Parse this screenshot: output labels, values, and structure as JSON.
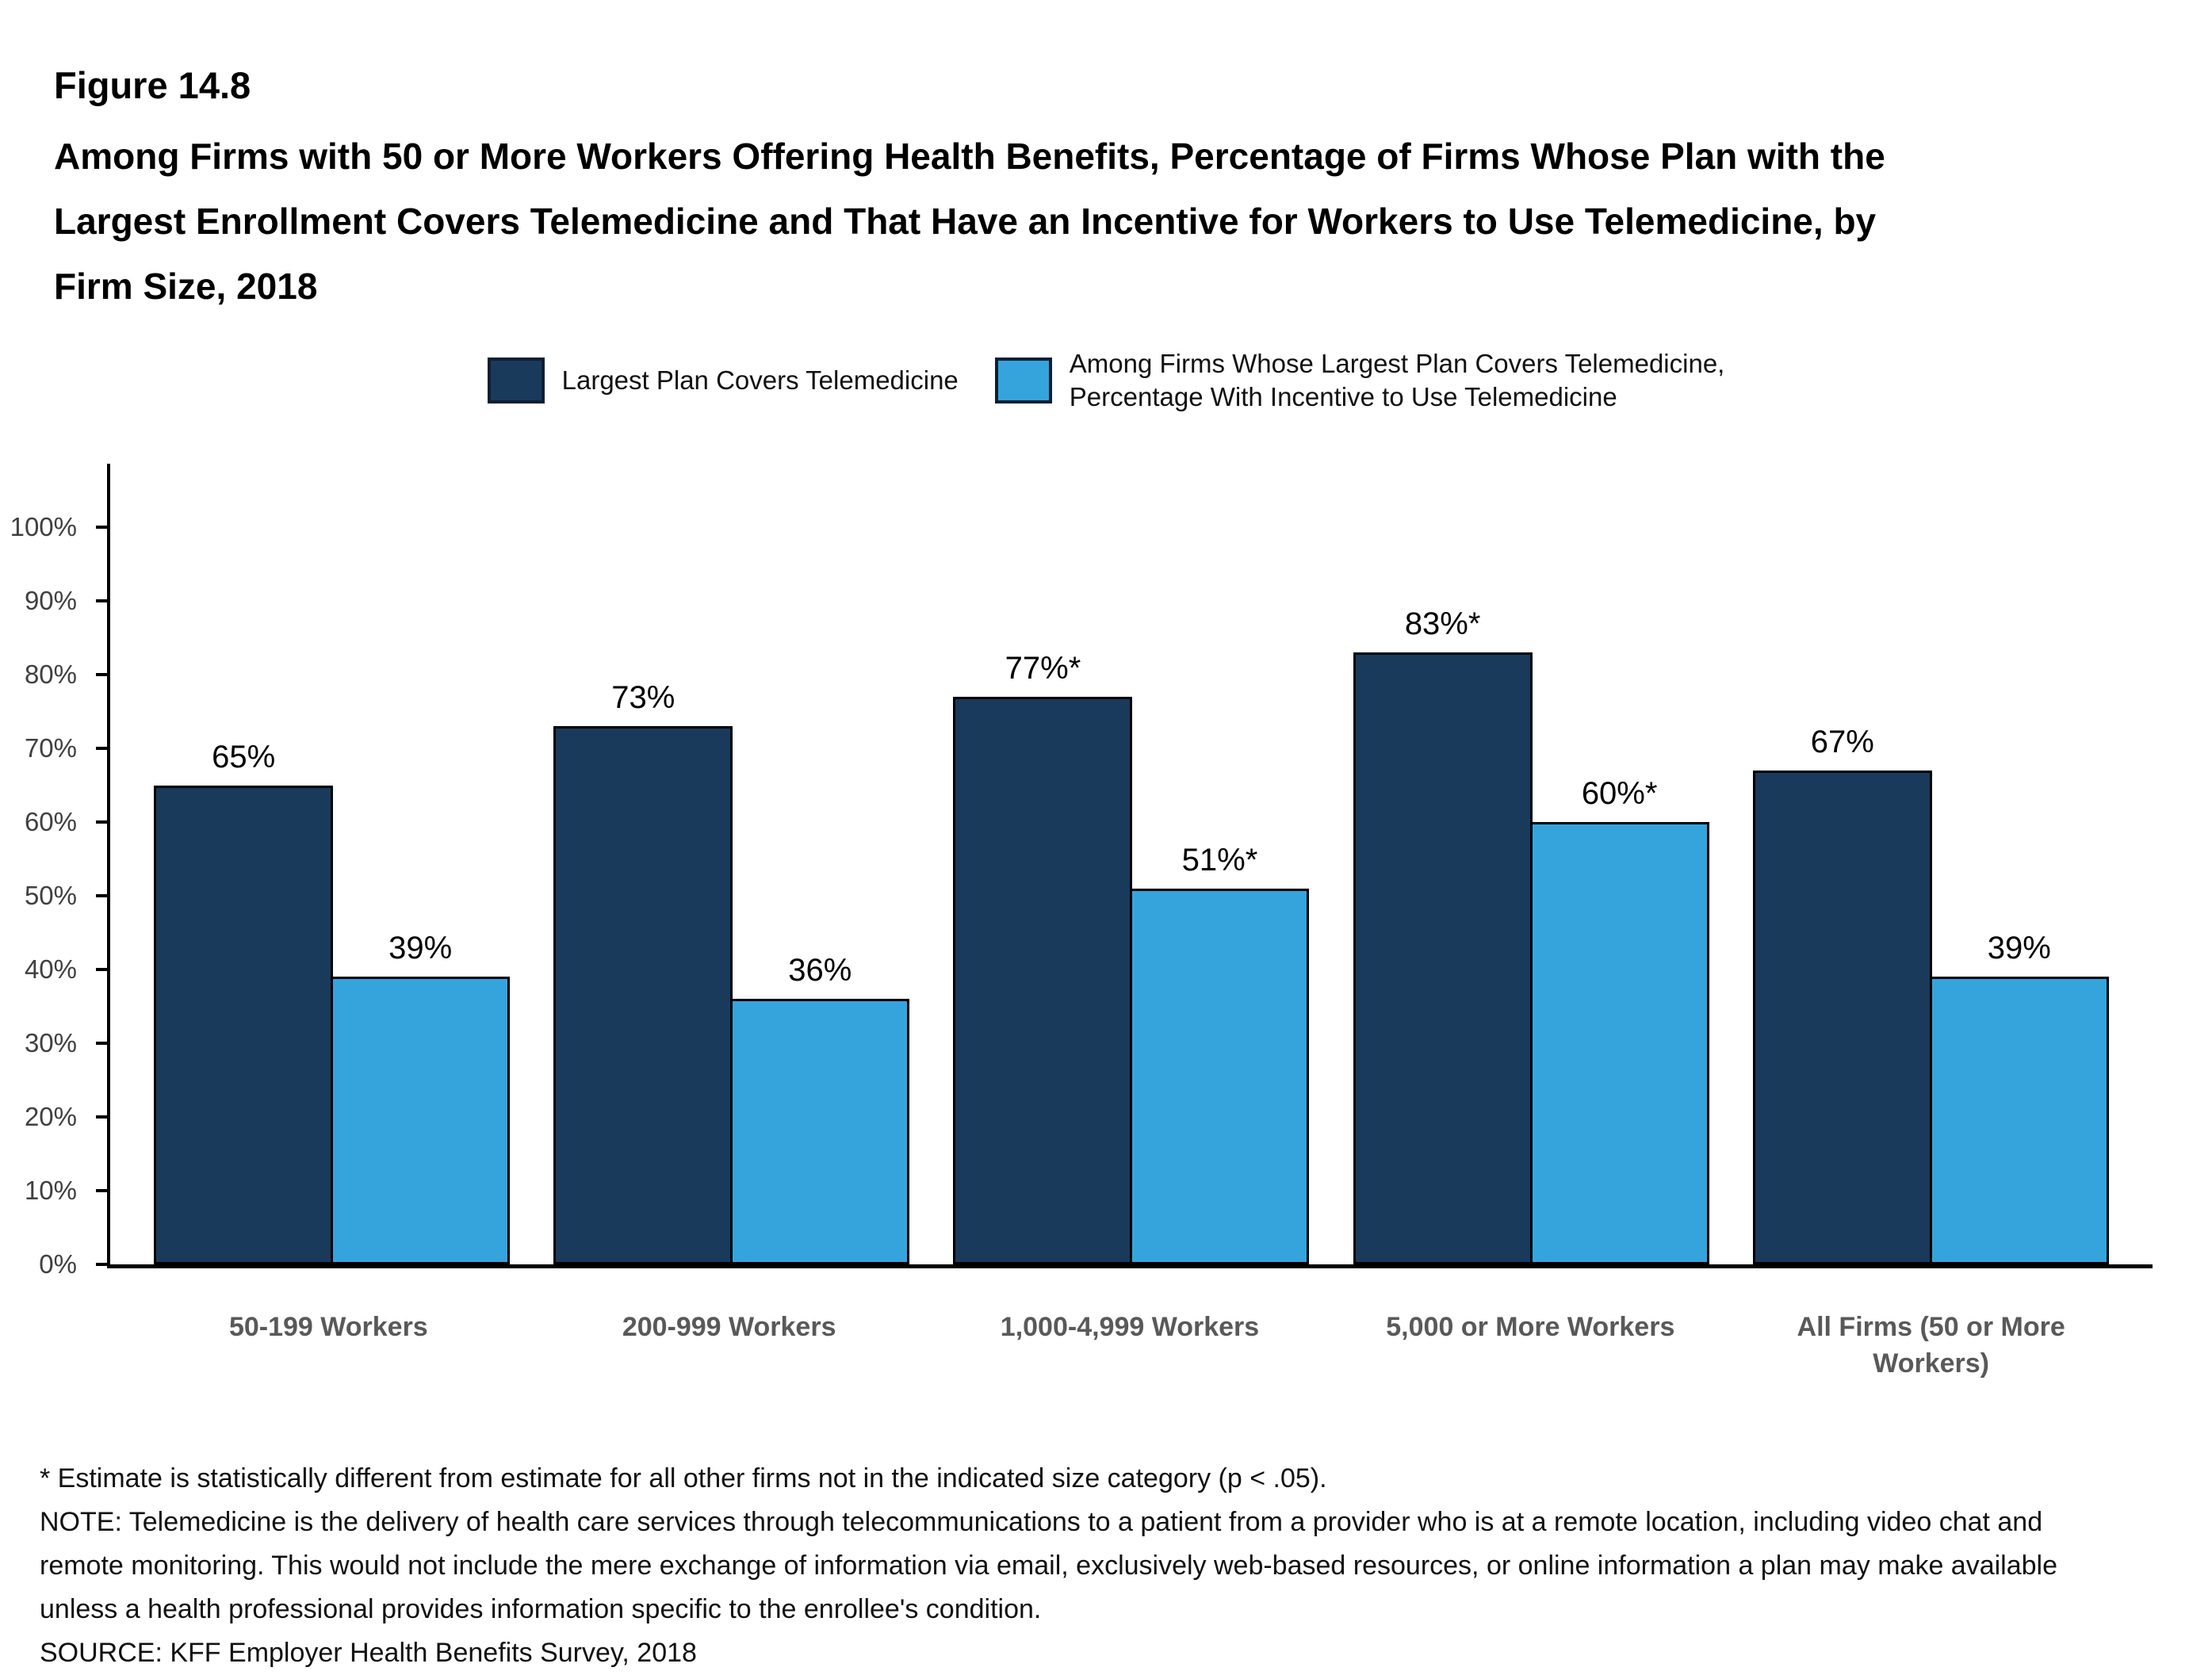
{
  "figure": {
    "number": "Figure 14.8",
    "title": "Among Firms with 50 or More Workers Offering Health Benefits, Percentage of Firms Whose Plan with the Largest Enrollment Covers Telemedicine and That Have an Incentive for Workers to Use Telemedicine, by Firm Size, 2018"
  },
  "legend": [
    {
      "label": "Largest Plan Covers Telemedicine",
      "color": "#1a3a5c"
    },
    {
      "label": "Among Firms Whose Largest Plan Covers Telemedicine,\nPercentage With Incentive to Use Telemedicine",
      "color": "#35a4dd"
    }
  ],
  "chart_data": {
    "type": "bar",
    "title": "Among Firms with 50 or More Workers Offering Health Benefits, Percentage of Firms Whose Plan with the Largest Enrollment Covers Telemedicine and That Have an Incentive for Workers to Use Telemedicine, by Firm Size, 2018",
    "categories": [
      "50-199 Workers",
      "200-999 Workers",
      "1,000-4,999 Workers",
      "5,000 or More Workers",
      "All Firms (50 or More Workers)"
    ],
    "series": [
      {
        "name": "Largest Plan Covers Telemedicine",
        "color": "#1a3a5c",
        "values": [
          65,
          73,
          77,
          83,
          67
        ],
        "labels": [
          "65%",
          "73%",
          "77%*",
          "83%*",
          "67%"
        ]
      },
      {
        "name": "Among Firms Whose Largest Plan Covers Telemedicine, Percentage With Incentive to Use Telemedicine",
        "color": "#35a4dd",
        "values": [
          39,
          36,
          51,
          60,
          39
        ],
        "labels": [
          "39%",
          "36%",
          "51%*",
          "60%*",
          "39%"
        ]
      }
    ],
    "xlabel": "",
    "ylabel": "",
    "ylim": [
      0,
      100
    ],
    "yticks": [
      "0%",
      "10%",
      "20%",
      "30%",
      "40%",
      "50%",
      "60%",
      "70%",
      "80%",
      "90%",
      "100%"
    ],
    "grid": false,
    "legend_position": "top"
  },
  "footnotes": [
    "* Estimate is statistically different from estimate for all other firms not in the indicated size category (p < .05).",
    "NOTE: Telemedicine is the delivery of health care services through telecommunications to a patient from a provider who is at a remote location, including video chat and remote monitoring. This would not include the mere exchange of information via email, exclusively web-based resources, or online information a plan may make available unless a health professional provides information specific to the enrollee's condition.",
    "SOURCE: KFF Employer Health Benefits Survey, 2018"
  ]
}
